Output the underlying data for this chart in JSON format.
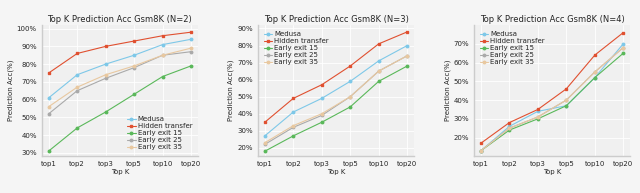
{
  "x_ticks": [
    "top1",
    "top2",
    "top3",
    "top5",
    "top10",
    "top20"
  ],
  "x_vals": [
    1,
    2,
    3,
    5,
    10,
    20
  ],
  "panels": [
    {
      "title": "Top K Prediction Acc Gsm8K (N=2)",
      "ylim": [
        28,
        102
      ],
      "yticks": [
        30,
        40,
        50,
        60,
        70,
        80,
        90,
        100
      ],
      "legend_loc": "lower right",
      "series": {
        "Medusa": [
          61,
          74,
          80,
          85,
          91,
          94
        ],
        "Hidden transfer": [
          75,
          86,
          90,
          93,
          96,
          98
        ],
        "Early exit 15": [
          31,
          44,
          53,
          63,
          73,
          79
        ],
        "Early exit 25": [
          52,
          65,
          72,
          78,
          85,
          87
        ],
        "Early exit 35": [
          56,
          67,
          74,
          79,
          85,
          89
        ]
      }
    },
    {
      "title": "Top K Prediction Acc Gsm8K (N=3)",
      "ylim": [
        15,
        92
      ],
      "yticks": [
        20,
        30,
        40,
        50,
        60,
        70,
        80,
        90
      ],
      "legend_loc": "upper left",
      "series": {
        "Medusa": [
          27,
          41,
          49,
          59,
          71,
          80
        ],
        "Hidden transfer": [
          35,
          49,
          57,
          68,
          81,
          88
        ],
        "Early exit 15": [
          18,
          27,
          35,
          44,
          59,
          68
        ],
        "Early exit 25": [
          22,
          32,
          39,
          50,
          65,
          74
        ],
        "Early exit 35": [
          23,
          33,
          40,
          50,
          65,
          74
        ]
      }
    },
    {
      "title": "Top K Prediction Acc Gsm8K (N=4)",
      "ylim": [
        10,
        80
      ],
      "yticks": [
        20,
        30,
        40,
        50,
        60,
        70
      ],
      "legend_loc": "upper left",
      "series": {
        "Medusa": [
          13,
          26,
          34,
          37,
          52,
          70
        ],
        "Hidden transfer": [
          17,
          28,
          35,
          46,
          64,
          76
        ],
        "Early exit 15": [
          13,
          24,
          30,
          37,
          52,
          65
        ],
        "Early exit 25": [
          13,
          25,
          31,
          40,
          55,
          68
        ],
        "Early exit 35": [
          13,
          25,
          31,
          40,
          55,
          68
        ]
      }
    }
  ],
  "series_styles": {
    "Medusa": {
      "color": "#7ec8e8",
      "marker": "o"
    },
    "Hidden transfer": {
      "color": "#e05030",
      "marker": "s"
    },
    "Early exit 15": {
      "color": "#5ab85a",
      "marker": "o"
    },
    "Early exit 25": {
      "color": "#aaaaaa",
      "marker": "o"
    },
    "Early exit 35": {
      "color": "#e8c8a0",
      "marker": "o"
    }
  },
  "ylabel": "Prediction Acc(%)",
  "xlabel": "Top K",
  "legend_fontsize": 5,
  "tick_fontsize": 5,
  "title_fontsize": 6,
  "label_fontsize": 5,
  "bg_color": "#f0f0f0",
  "grid_color": "#ffffff"
}
